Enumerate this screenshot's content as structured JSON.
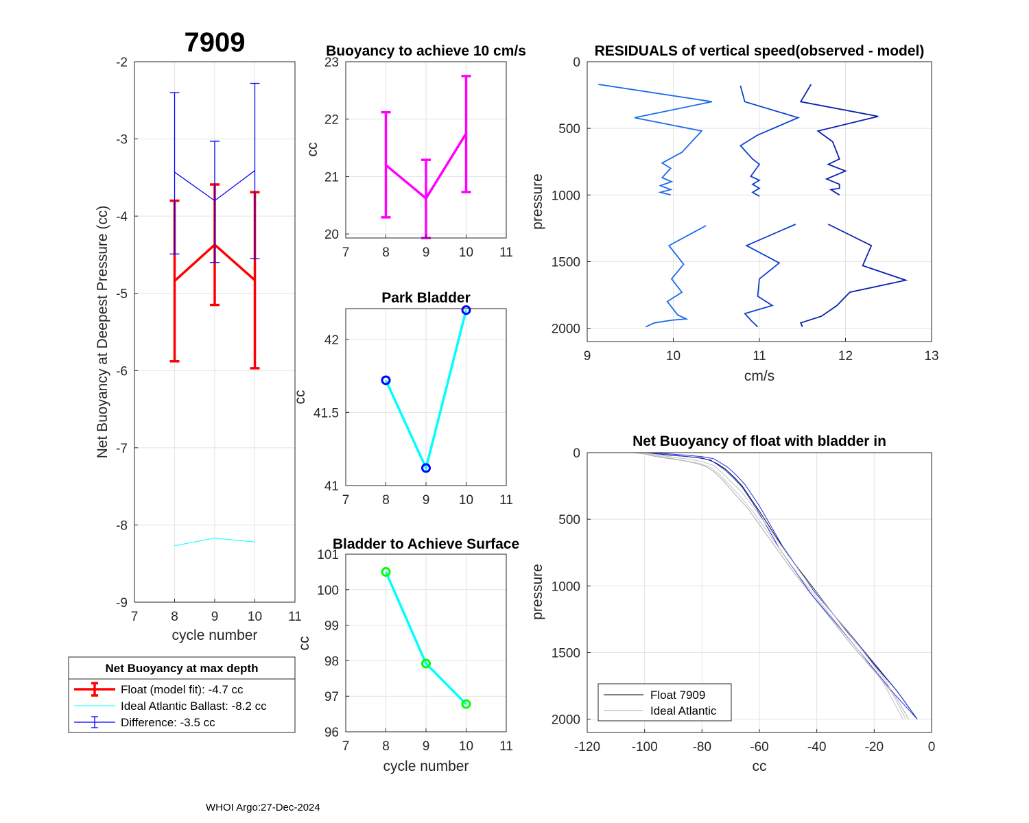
{
  "footer": "WHOI Argo:27-Dec-2024",
  "chart_data": [
    {
      "id": "p1",
      "type": "line",
      "title": "7909",
      "xlabel": "cycle number",
      "ylabel": "Net Buoyancy at Deepest Pressure (cc)",
      "xlim": [
        7,
        11
      ],
      "ylim": [
        -9,
        -2
      ],
      "xticks": [
        7,
        8,
        9,
        10,
        11
      ],
      "yticks": [
        -9,
        -8,
        -7,
        -6,
        -5,
        -4,
        -3,
        -2
      ],
      "series": [
        {
          "name": "Float (model fit)",
          "color": "#ff0000",
          "width": 3.5,
          "x": [
            8,
            9,
            10
          ],
          "y": [
            -4.84,
            -4.37,
            -4.83
          ],
          "err_lo": [
            -5.88,
            -5.15,
            -5.97
          ],
          "err_hi": [
            -3.8,
            -3.59,
            -3.69
          ]
        },
        {
          "name": "Ideal Atlantic Ballast",
          "color": "#00ffff",
          "width": 1,
          "x": [
            8,
            9,
            10
          ],
          "y": [
            -8.27,
            -8.17,
            -8.22
          ]
        },
        {
          "name": "Difference",
          "color": "#0000ff",
          "width": 1.3,
          "x": [
            8,
            9,
            10
          ],
          "y": [
            -3.43,
            -3.8,
            -3.41
          ],
          "err_lo": [
            -4.49,
            -4.6,
            -4.55
          ],
          "err_hi": [
            -2.4,
            -3.03,
            -2.28
          ]
        }
      ],
      "legend": {
        "title": "Net Buoyancy at max depth",
        "entries": [
          "Float (model fit):  -4.7 cc",
          "Ideal Atlantic Ballast:  -8.2 cc",
          "Difference:  -3.5 cc"
        ]
      }
    },
    {
      "id": "p2",
      "type": "line",
      "title": "Buoyancy to achieve 10 cm/s",
      "xlabel": "",
      "ylabel": "cc",
      "xlim": [
        7,
        11
      ],
      "ylim": [
        19.93,
        23
      ],
      "xticks": [
        7,
        8,
        9,
        10,
        11
      ],
      "yticks": [
        20,
        21,
        22,
        23
      ],
      "series": [
        {
          "name": "buoyancy",
          "color": "#ff00ff",
          "width": 3.5,
          "x": [
            8,
            9,
            10
          ],
          "y": [
            21.2,
            20.62,
            21.75
          ],
          "err_lo": [
            20.29,
            19.93,
            20.73
          ],
          "err_hi": [
            22.12,
            21.29,
            22.75
          ]
        }
      ]
    },
    {
      "id": "p3",
      "type": "line",
      "title": "Park Bladder",
      "xlabel": "",
      "ylabel": "cc",
      "xlim": [
        7,
        11
      ],
      "ylim": [
        41,
        42.21
      ],
      "xticks": [
        7,
        8,
        9,
        10,
        11
      ],
      "yticks": [
        41,
        41.5,
        42
      ],
      "series": [
        {
          "name": "park bladder",
          "color": "#00ffff",
          "width": 3.5,
          "marker": "#0000ff",
          "x": [
            8,
            9,
            10
          ],
          "y": [
            41.72,
            41.12,
            42.2
          ]
        }
      ]
    },
    {
      "id": "p4",
      "type": "line",
      "title": "Bladder to Achieve Surface",
      "xlabel": "cycle number",
      "ylabel": "cc",
      "xlim": [
        7,
        11
      ],
      "ylim": [
        96,
        101
      ],
      "xticks": [
        7,
        8,
        9,
        10,
        11
      ],
      "yticks": [
        96,
        97,
        98,
        99,
        100,
        101
      ],
      "series": [
        {
          "name": "surface bladder",
          "color": "#00ffff",
          "width": 3.5,
          "marker": "#00ff00",
          "x": [
            8,
            9,
            10
          ],
          "y": [
            100.5,
            97.92,
            96.78
          ]
        }
      ]
    },
    {
      "id": "p5",
      "type": "line",
      "title": "RESIDUALS of vertical speed(observed - model)",
      "xlabel": "cm/s",
      "ylabel": "pressure",
      "xlim": [
        9,
        13
      ],
      "ylim": [
        0,
        2100
      ],
      "yreverse": true,
      "xticks": [
        9,
        10,
        11,
        12,
        13
      ],
      "yticks": [
        0,
        500,
        1000,
        1500,
        2000
      ],
      "series": [
        {
          "name": "c8a",
          "color": "#1a6af0",
          "width": 1.8,
          "x": [
            9.13,
            10.45,
            9.55,
            10.33,
            10.1,
            9.87,
            9.97,
            9.87,
            9.98,
            9.85,
            9.97,
            9.85,
            9.97
          ],
          "y": [
            170,
            300,
            420,
            520,
            680,
            760,
            800,
            870,
            900,
            930,
            960,
            980,
            1000
          ]
        },
        {
          "name": "c8b",
          "color": "#1a6af0",
          "width": 1.8,
          "x": [
            10.38,
            9.95,
            10.12,
            9.98,
            10.1,
            9.93,
            10.05,
            10.15,
            9.98,
            9.78,
            9.68
          ],
          "y": [
            1230,
            1380,
            1520,
            1630,
            1730,
            1800,
            1900,
            1930,
            1940,
            1960,
            1990
          ]
        },
        {
          "name": "c9a",
          "color": "#0a40d0",
          "width": 1.8,
          "x": [
            10.78,
            10.83,
            11.45,
            10.98,
            10.78,
            10.92,
            11.0,
            10.9,
            11.0,
            10.92,
            11.0,
            10.92,
            11.0
          ],
          "y": [
            180,
            300,
            420,
            550,
            630,
            730,
            770,
            860,
            890,
            920,
            950,
            980,
            1010
          ]
        },
        {
          "name": "c9b",
          "color": "#0a40d0",
          "width": 1.8,
          "x": [
            11.42,
            10.85,
            11.23,
            11.0,
            10.98,
            11.15,
            10.83,
            10.9,
            10.98
          ],
          "y": [
            1220,
            1380,
            1510,
            1630,
            1760,
            1830,
            1890,
            1940,
            1990
          ]
        },
        {
          "name": "c10a",
          "color": "#0a20b0",
          "width": 1.8,
          "x": [
            11.6,
            11.48,
            12.38,
            11.68,
            11.85,
            11.93,
            11.8,
            12.0,
            11.78,
            11.93,
            11.93,
            11.83,
            11.93
          ],
          "y": [
            170,
            300,
            410,
            520,
            600,
            730,
            770,
            820,
            880,
            920,
            950,
            960,
            1000
          ]
        },
        {
          "name": "c10b",
          "color": "#0a20b0",
          "width": 1.8,
          "x": [
            11.8,
            12.3,
            12.2,
            12.7,
            12.05,
            11.9,
            11.72,
            11.48,
            11.5
          ],
          "y": [
            1220,
            1380,
            1530,
            1640,
            1730,
            1830,
            1910,
            1960,
            1990
          ]
        }
      ]
    },
    {
      "id": "p6",
      "type": "line",
      "title": "Net Buoyancy of float with bladder in",
      "xlabel": "cc",
      "ylabel": "pressure",
      "xlim": [
        -120,
        0
      ],
      "ylim": [
        0,
        2100
      ],
      "yreverse": true,
      "xticks": [
        -120,
        -100,
        -80,
        -60,
        -40,
        -20,
        0
      ],
      "yticks": [
        0,
        500,
        1000,
        1500,
        2000
      ],
      "series": [
        {
          "name": "Float 7909",
          "color": "#000000",
          "width": 1,
          "legend": true,
          "x": [
            -100,
            -98,
            -95,
            -90,
            -85,
            -80,
            -77,
            -75,
            -72,
            -69,
            -66,
            -60,
            -50,
            -40,
            -30,
            -20,
            -12,
            -5
          ],
          "y": [
            0,
            2,
            10,
            20,
            30,
            40,
            60,
            80,
            120,
            180,
            250,
            440,
            770,
            1050,
            1330,
            1590,
            1790,
            2000
          ]
        },
        {
          "name": "Ideal Atlantic",
          "color": "#aaaaaa",
          "width": 1,
          "legend": true,
          "x": [
            -104,
            -100,
            -97,
            -93,
            -88,
            -83,
            -79,
            -76,
            -73,
            -69,
            -64,
            -58,
            -48,
            -38,
            -28,
            -18,
            -12,
            -8
          ],
          "y": [
            0,
            10,
            25,
            40,
            55,
            75,
            100,
            140,
            200,
            300,
            420,
            600,
            900,
            1170,
            1440,
            1690,
            1850,
            2000
          ]
        },
        {
          "name": "blue1",
          "color": "#2030e0",
          "width": 1,
          "x": [
            -97,
            -94,
            -90,
            -85,
            -80,
            -76,
            -74,
            -71,
            -68,
            -65,
            -60,
            -52,
            -41,
            -30,
            -20,
            -12,
            -5
          ],
          "y": [
            0,
            5,
            12,
            20,
            30,
            45,
            70,
            110,
            170,
            240,
            400,
            700,
            1040,
            1320,
            1580,
            1790,
            2000
          ]
        },
        {
          "name": "blue2",
          "color": "#2030e0",
          "width": 1,
          "x": [
            -99,
            -96,
            -92,
            -86,
            -81,
            -77,
            -75,
            -72,
            -69,
            -66,
            -61,
            -53,
            -42,
            -31,
            -21,
            -13,
            -5
          ],
          "y": [
            0,
            8,
            18,
            28,
            40,
            55,
            85,
            130,
            190,
            260,
            420,
            720,
            1060,
            1340,
            1600,
            1810,
            2000
          ]
        },
        {
          "name": "grey1",
          "color": "#c0c0c0",
          "width": 1,
          "x": [
            -102,
            -98,
            -94,
            -90,
            -86,
            -81,
            -77,
            -74,
            -71,
            -67,
            -62,
            -56,
            -46,
            -36,
            -26,
            -17,
            -10
          ],
          "y": [
            0,
            15,
            30,
            45,
            60,
            80,
            110,
            160,
            230,
            320,
            450,
            630,
            930,
            1200,
            1470,
            1720,
            2000
          ]
        },
        {
          "name": "grey2",
          "color": "#c0c0c0",
          "width": 1,
          "x": [
            -101,
            -97,
            -93,
            -89,
            -84,
            -80,
            -76,
            -73,
            -70,
            -66,
            -61,
            -55,
            -45,
            -35,
            -25,
            -16,
            -9
          ],
          "y": [
            0,
            12,
            24,
            38,
            50,
            68,
            95,
            150,
            215,
            300,
            440,
            620,
            920,
            1190,
            1460,
            1710,
            2000
          ]
        }
      ]
    }
  ]
}
